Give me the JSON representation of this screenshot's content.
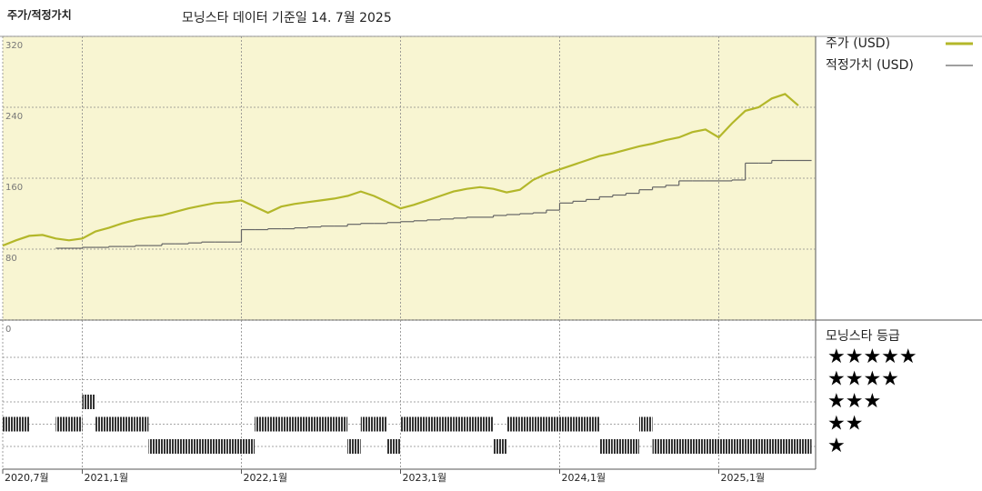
{
  "chart_data": {
    "type": "line",
    "title": "주가/적정가치",
    "subtitle": "모닝스타 데이터 기준일 14. 7월 2025",
    "x": [
      "2020-07",
      "2020-08",
      "2020-09",
      "2020-10",
      "2020-11",
      "2020-12",
      "2021-01",
      "2021-02",
      "2021-03",
      "2021-04",
      "2021-05",
      "2021-06",
      "2021-07",
      "2021-08",
      "2021-09",
      "2021-10",
      "2021-11",
      "2021-12",
      "2022-01",
      "2022-02",
      "2022-03",
      "2022-04",
      "2022-05",
      "2022-06",
      "2022-07",
      "2022-08",
      "2022-09",
      "2022-10",
      "2022-11",
      "2022-12",
      "2023-01",
      "2023-02",
      "2023-03",
      "2023-04",
      "2023-05",
      "2023-06",
      "2023-07",
      "2023-08",
      "2023-09",
      "2023-10",
      "2023-11",
      "2023-12",
      "2024-01",
      "2024-02",
      "2024-03",
      "2024-04",
      "2024-05",
      "2024-06",
      "2024-07",
      "2024-08",
      "2024-09",
      "2024-10",
      "2024-11",
      "2024-12",
      "2025-01",
      "2025-02",
      "2025-03",
      "2025-04",
      "2025-05",
      "2025-06",
      "2025-07"
    ],
    "series": [
      {
        "name": "주가 (USD)",
        "color": "#b3b72a",
        "style": "line",
        "values": [
          84,
          90,
          95,
          96,
          92,
          90,
          92,
          100,
          104,
          109,
          113,
          116,
          118,
          122,
          126,
          129,
          132,
          133,
          135,
          128,
          121,
          128,
          131,
          133,
          135,
          137,
          140,
          145,
          140,
          133,
          126,
          130,
          135,
          140,
          145,
          148,
          150,
          148,
          144,
          147,
          158,
          165,
          170,
          175,
          180,
          185,
          188,
          192,
          196,
          199,
          203,
          206,
          212,
          215,
          206,
          222,
          236,
          240,
          250,
          255,
          242
        ]
      },
      {
        "name": "적정가치 (USD)",
        "color": "#666666",
        "style": "step",
        "values": [
          null,
          null,
          null,
          null,
          81,
          81,
          82,
          82,
          83,
          83,
          84,
          84,
          86,
          86,
          87,
          88,
          88,
          88,
          102,
          102,
          103,
          103,
          104,
          105,
          106,
          106,
          108,
          109,
          109,
          110,
          111,
          112,
          113,
          114,
          115,
          116,
          116,
          118,
          119,
          120,
          121,
          124,
          132,
          134,
          136,
          139,
          141,
          143,
          147,
          150,
          152,
          157,
          157,
          157,
          157,
          158,
          177,
          177,
          180,
          180,
          180
        ]
      }
    ],
    "ylim": [
      0,
      320
    ],
    "yticks": [
      0,
      80,
      160,
      240,
      320
    ],
    "grid": true,
    "xticks": [
      {
        "value": "2020-07",
        "label": "2020,7월"
      },
      {
        "value": "2021-01",
        "label": "2021,1월"
      },
      {
        "value": "2022-01",
        "label": "2022,1월"
      },
      {
        "value": "2023-01",
        "label": "2023,1월"
      },
      {
        "value": "2024-01",
        "label": "2024,1월"
      },
      {
        "value": "2025-01",
        "label": "2025,1월"
      }
    ],
    "rating": {
      "title": "모닝스타 등급",
      "levels": [
        5,
        4,
        3,
        2,
        1
      ],
      "level_labels": [
        "★★★★★",
        "★★★★",
        "★★★",
        "★★",
        "★"
      ],
      "color": "#333333",
      "values": [
        2,
        2,
        null,
        null,
        2,
        2,
        3,
        2,
        2,
        2,
        2,
        1,
        1,
        1,
        1,
        1,
        1,
        1,
        1,
        2,
        2,
        2,
        2,
        2,
        2,
        2,
        1,
        2,
        2,
        1,
        2,
        2,
        2,
        2,
        2,
        2,
        2,
        1,
        2,
        2,
        2,
        2,
        2,
        2,
        2,
        1,
        1,
        1,
        2,
        1,
        1,
        1,
        1,
        1,
        1,
        1,
        1,
        1,
        1,
        1,
        1
      ]
    }
  }
}
